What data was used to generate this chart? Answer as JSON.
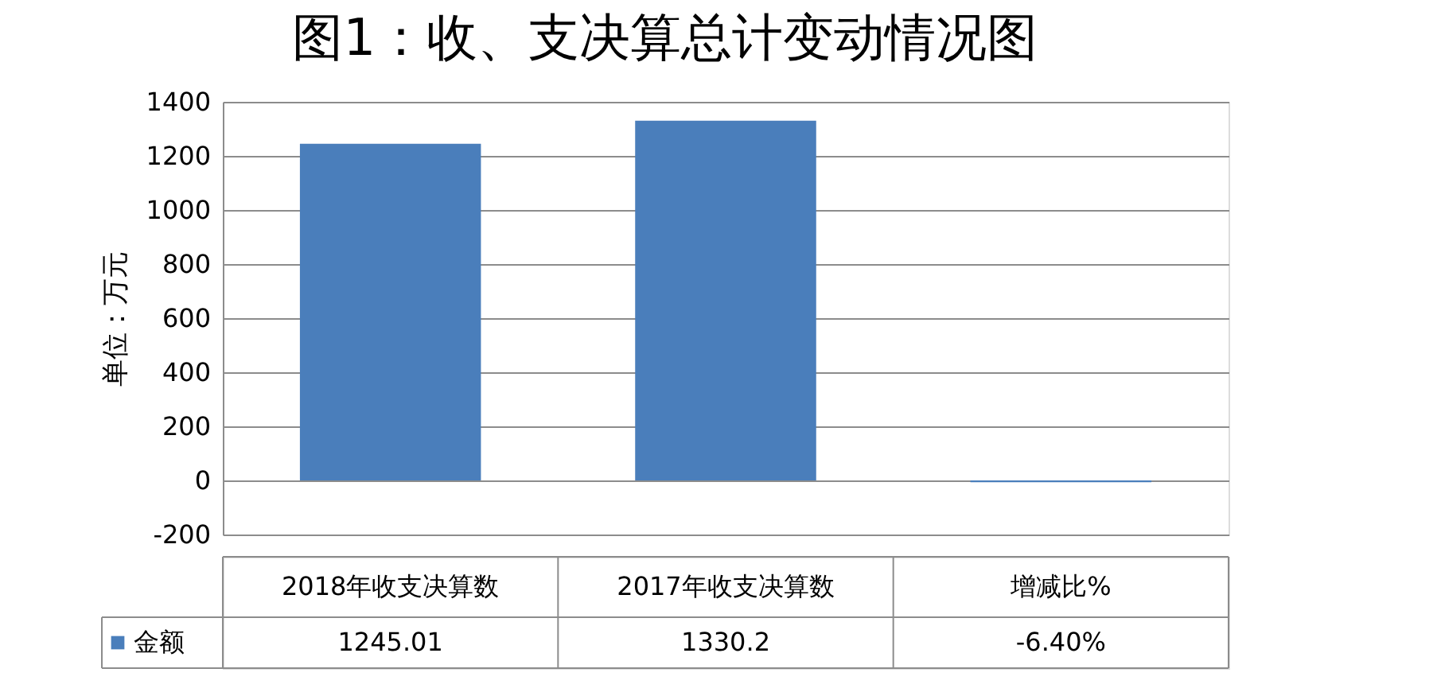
{
  "chart_data": {
    "type": "bar",
    "title": "图1：收、支决算总计变动情况图",
    "ylabel": "单位：万元",
    "categories": [
      "2018年收支决算数",
      "2017年收支决算数",
      "增减比%"
    ],
    "series": [
      {
        "name": "金额",
        "color": "#4a7ebb",
        "values": [
          1245.01,
          1330.2,
          -6.4
        ],
        "value_labels": [
          "1245.01",
          "1330.2",
          "-6.40%"
        ]
      }
    ],
    "ylim": [
      -200,
      1400
    ],
    "yticks": [
      -200,
      0,
      200,
      400,
      600,
      800,
      1000,
      1200,
      1400
    ],
    "grid": "y",
    "legend": "bottom"
  }
}
